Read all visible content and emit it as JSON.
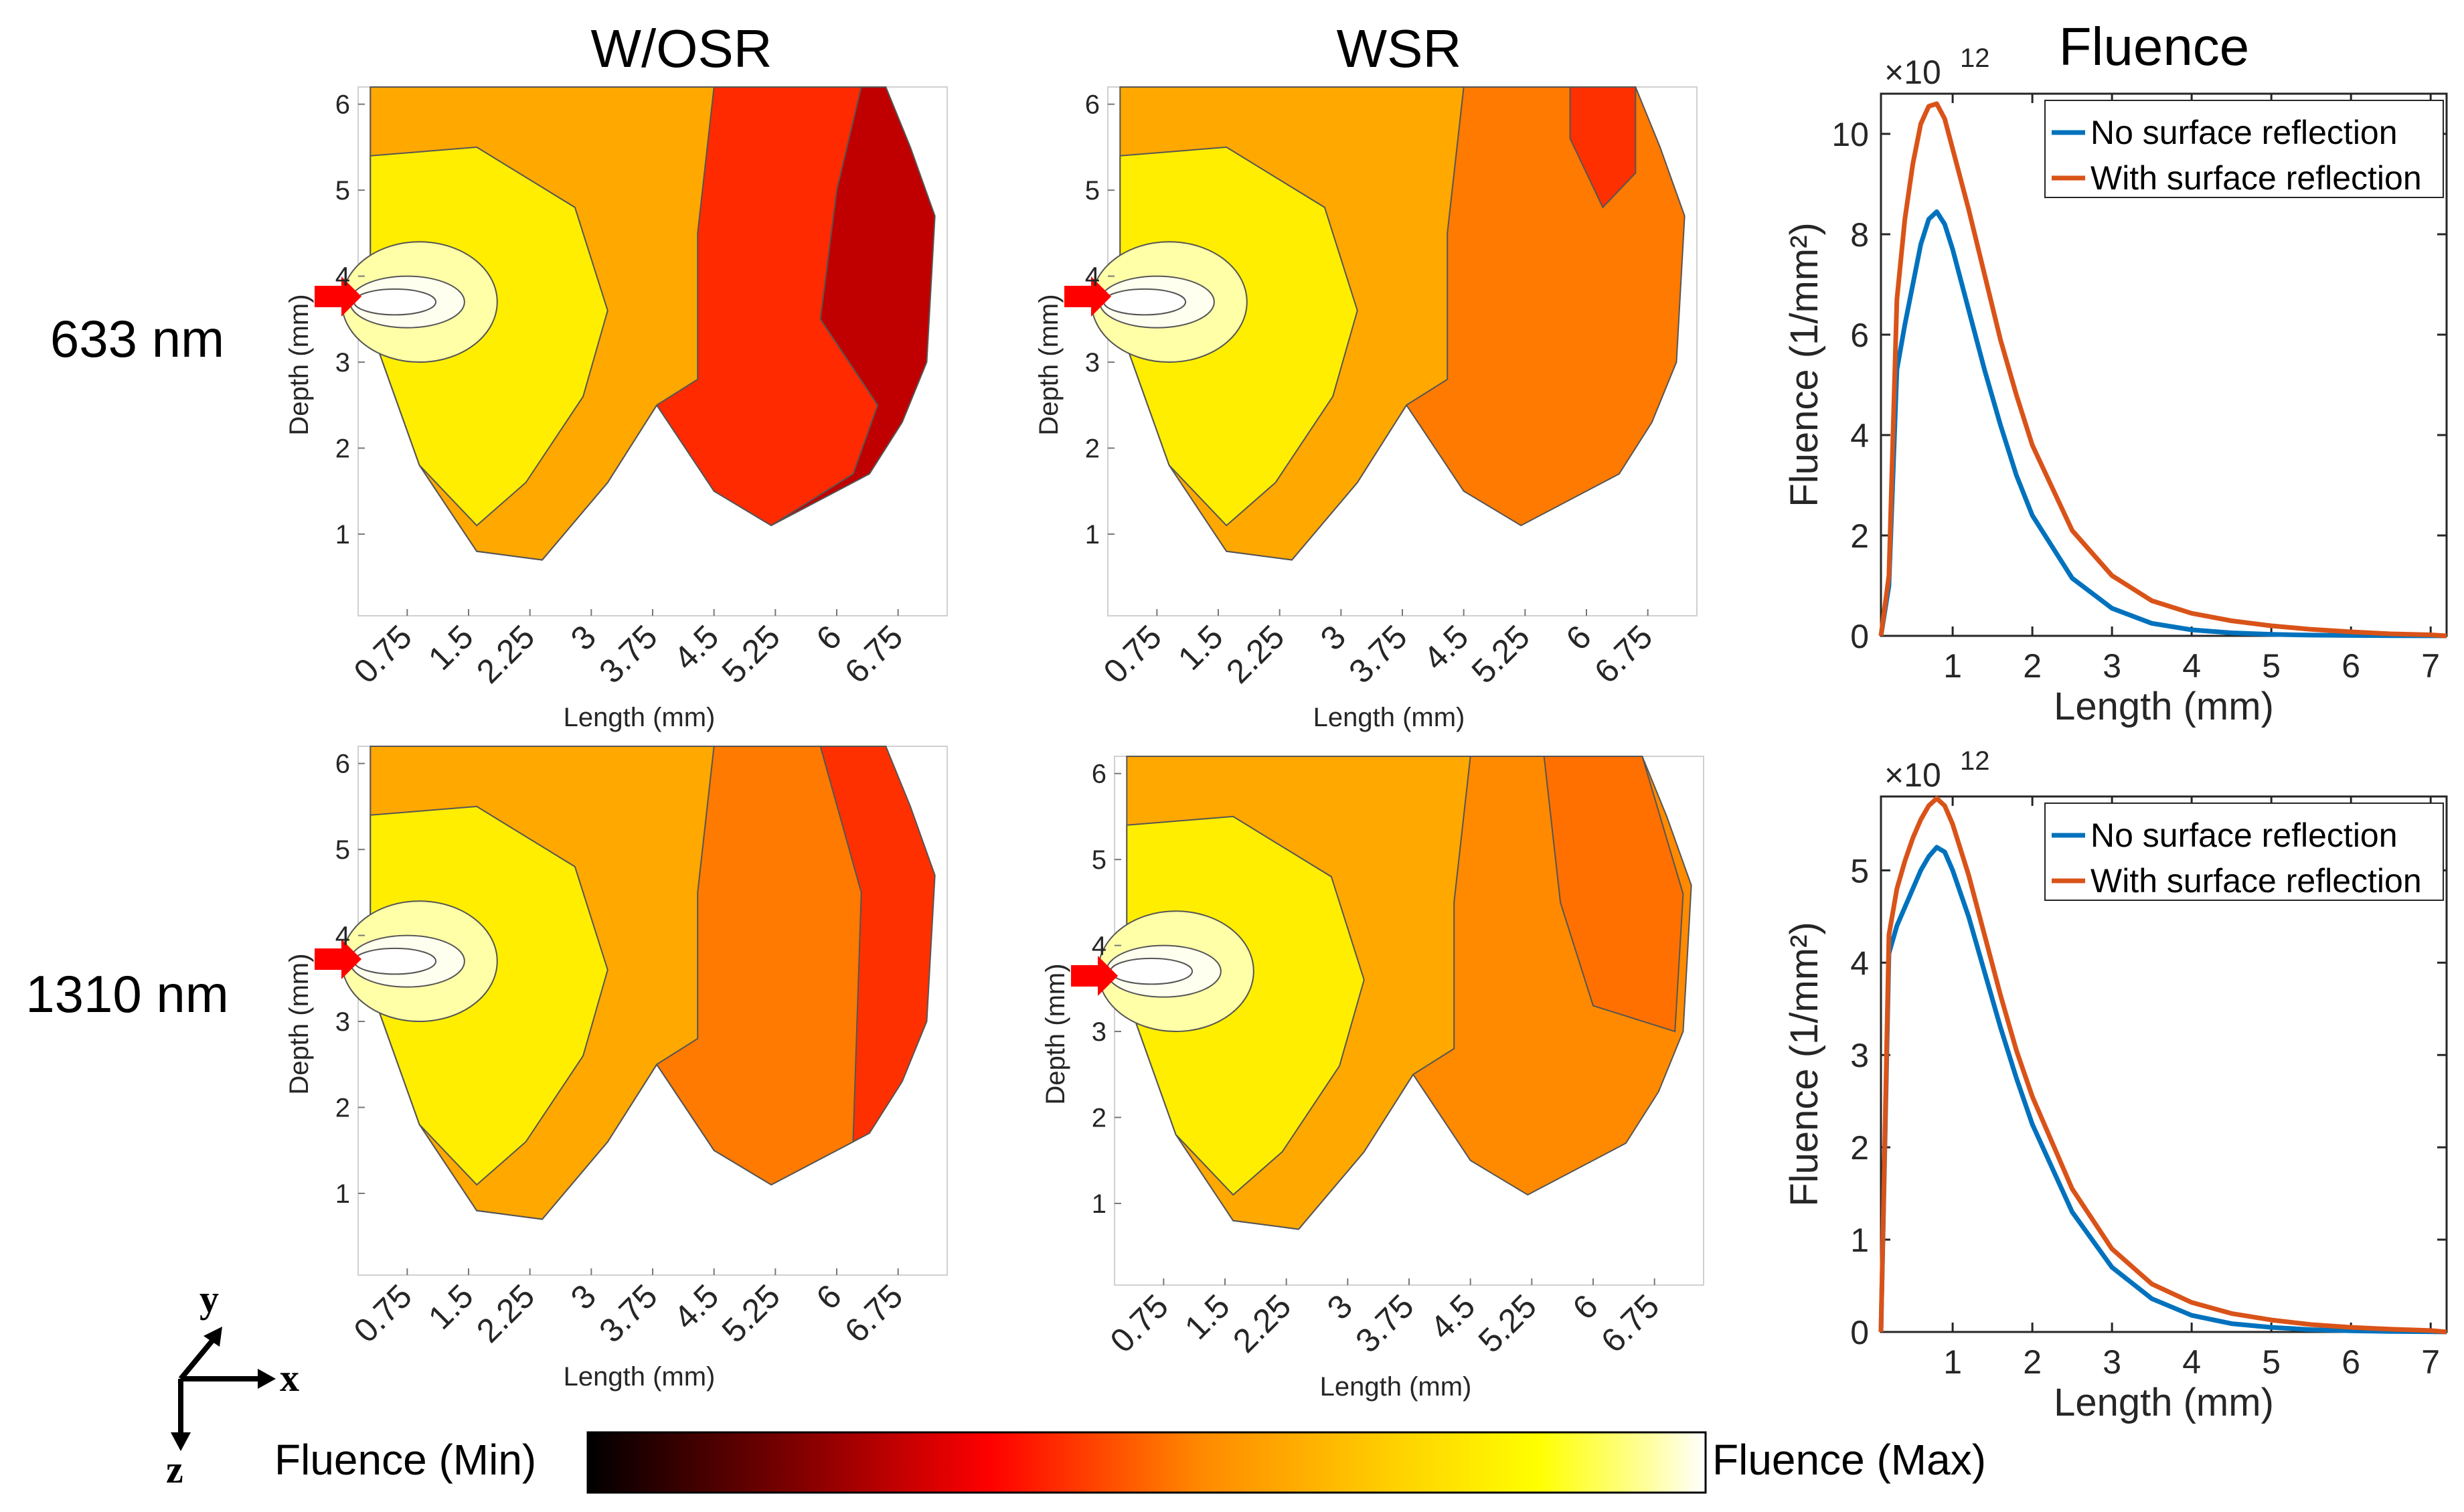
{
  "figure": {
    "col_titles": [
      "W/OSR",
      "WSR",
      "Fluence"
    ],
    "row_labels": [
      "633 nm",
      "1310 nm"
    ]
  },
  "colors": {
    "no_reflection": "#0072BD",
    "with_reflection": "#D95319",
    "arrow": "#FF0000",
    "colormap": [
      "#000000",
      "#7a0000",
      "#ff0000",
      "#ff8a00",
      "#ffd000",
      "#ffff00",
      "#ffffa0",
      "#ffffff"
    ]
  },
  "colorbar": {
    "min_label": "Fluence (Min)",
    "max_label": "Fluence (Max)"
  },
  "axes_triad": {
    "x": "x",
    "y": "y",
    "z": "z"
  },
  "contour_maps": {
    "xlabel": "Length (mm)",
    "ylabel": "Depth (mm)",
    "xticks": [
      "0.75",
      "1.5",
      "2.25",
      "3",
      "3.75",
      "4.5",
      "5.25",
      "6",
      "6.75"
    ],
    "yticks": [
      "1",
      "2",
      "3",
      "4",
      "5",
      "6"
    ],
    "source_depth_mm": 3.7
  },
  "chart_data": [
    {
      "type": "line",
      "title": "Fluence",
      "xlabel": "Length (mm)",
      "ylabel": "Fluence (1/mm²)",
      "exponent_label": "×10",
      "exponent": "12",
      "xlim": [
        0.1,
        7.2
      ],
      "ylim": [
        0,
        10.8
      ],
      "xticks": [
        "1",
        "2",
        "3",
        "4",
        "5",
        "6",
        "7"
      ],
      "yticks": [
        "0",
        "2",
        "4",
        "6",
        "8",
        "10"
      ],
      "x": [
        0.1,
        0.2,
        0.3,
        0.4,
        0.5,
        0.6,
        0.7,
        0.8,
        0.9,
        1.0,
        1.2,
        1.4,
        1.6,
        1.8,
        2.0,
        2.5,
        3.0,
        3.5,
        4.0,
        4.5,
        5.0,
        5.5,
        6.0,
        6.5,
        7.0,
        7.2
      ],
      "series": [
        {
          "name": "No surface reflection",
          "values": [
            0,
            1.0,
            5.3,
            6.2,
            7.0,
            7.8,
            8.3,
            8.45,
            8.2,
            7.7,
            6.5,
            5.3,
            4.2,
            3.2,
            2.4,
            1.15,
            0.55,
            0.25,
            0.12,
            0.06,
            0.03,
            0.015,
            0.008,
            0.004,
            0.002,
            0
          ]
        },
        {
          "name": "With surface reflection",
          "values": [
            0,
            1.2,
            6.7,
            8.3,
            9.4,
            10.2,
            10.55,
            10.6,
            10.3,
            9.7,
            8.5,
            7.2,
            5.9,
            4.8,
            3.8,
            2.1,
            1.2,
            0.7,
            0.45,
            0.3,
            0.2,
            0.13,
            0.08,
            0.04,
            0.02,
            0
          ]
        }
      ]
    },
    {
      "type": "line",
      "title": "",
      "xlabel": "Length (mm)",
      "ylabel": "Fluence (1/mm²)",
      "exponent_label": "×10",
      "exponent": "12",
      "xlim": [
        0.1,
        7.2
      ],
      "ylim": [
        0,
        5.8
      ],
      "xticks": [
        "1",
        "2",
        "3",
        "4",
        "5",
        "6",
        "7"
      ],
      "yticks": [
        "0",
        "1",
        "2",
        "3",
        "4",
        "5"
      ],
      "x": [
        0.1,
        0.2,
        0.3,
        0.4,
        0.5,
        0.6,
        0.7,
        0.8,
        0.9,
        1.0,
        1.2,
        1.4,
        1.6,
        1.8,
        2.0,
        2.5,
        3.0,
        3.5,
        4.0,
        4.5,
        5.0,
        5.5,
        6.0,
        6.5,
        7.0,
        7.2
      ],
      "series": [
        {
          "name": "No surface reflection",
          "values": [
            0,
            4.1,
            4.4,
            4.6,
            4.8,
            5.0,
            5.15,
            5.25,
            5.2,
            5.0,
            4.5,
            3.9,
            3.3,
            2.75,
            2.25,
            1.3,
            0.7,
            0.36,
            0.18,
            0.09,
            0.05,
            0.025,
            0.012,
            0.006,
            0.003,
            0
          ]
        },
        {
          "name": "With surface reflection",
          "values": [
            0,
            4.3,
            4.8,
            5.1,
            5.35,
            5.55,
            5.7,
            5.78,
            5.7,
            5.5,
            4.95,
            4.3,
            3.65,
            3.05,
            2.55,
            1.55,
            0.9,
            0.52,
            0.32,
            0.2,
            0.13,
            0.08,
            0.05,
            0.03,
            0.015,
            0
          ]
        }
      ]
    }
  ]
}
